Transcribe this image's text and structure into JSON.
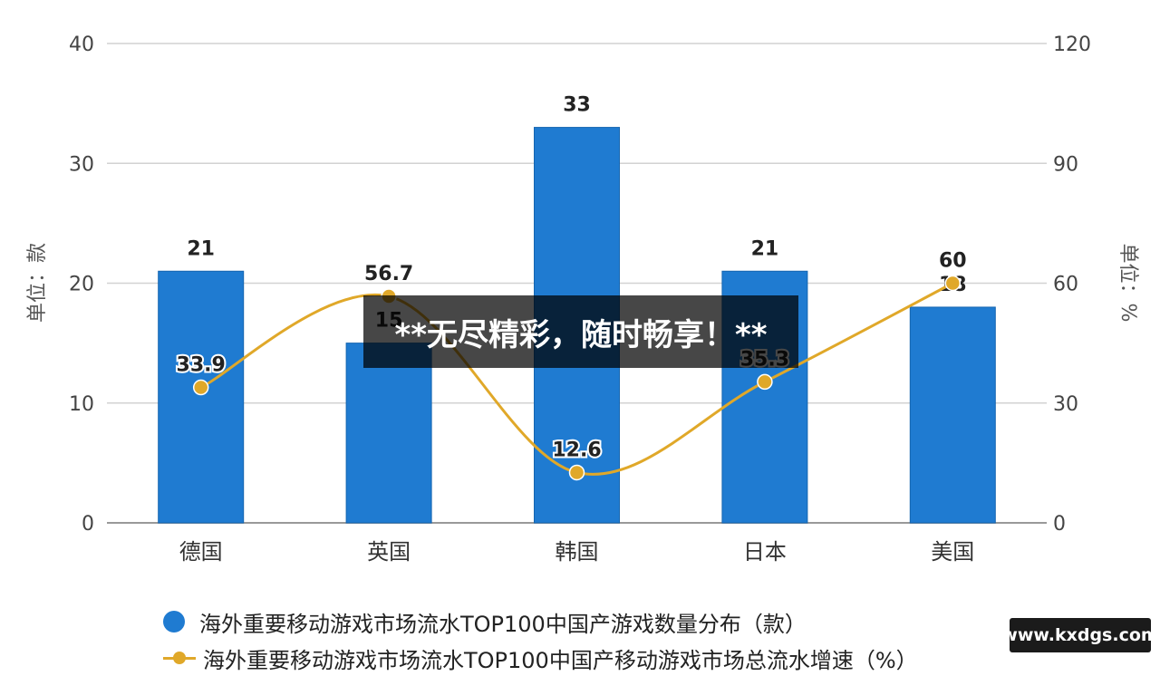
{
  "chart_data": {
    "type": "bar",
    "categories": [
      "德国",
      "英国",
      "韩国",
      "日本",
      "美国"
    ],
    "bar_series": {
      "name": "海外重要移动游戏市场流水TOP100中国产游戏数量分布（款）",
      "values": [
        21,
        15,
        33,
        21,
        18
      ],
      "color": "#1f7bd1"
    },
    "line_series": {
      "name": "海外重要移动游戏市场流水TOP100中国产移动游戏市场总流水增速（%）",
      "values": [
        33.9,
        56.7,
        12.6,
        35.3,
        60
      ],
      "labels": [
        "33.9",
        "56.7",
        "12.6",
        "35.3",
        "60"
      ],
      "color": "#e0a829"
    },
    "y_left": {
      "label": "单位：款",
      "ticks": [
        "0",
        "10",
        "20",
        "30",
        "40"
      ],
      "ylim": [
        0,
        40
      ]
    },
    "y_right": {
      "label": "单位：%",
      "ticks": [
        "0",
        "30",
        "60",
        "90",
        "120"
      ],
      "ylim": [
        0,
        120
      ]
    },
    "grid": true,
    "legend_position": "bottom"
  },
  "banner": {
    "text": "**无尽精彩，随时畅享！**"
  },
  "watermark": {
    "text": "www.kxdgs.com"
  }
}
